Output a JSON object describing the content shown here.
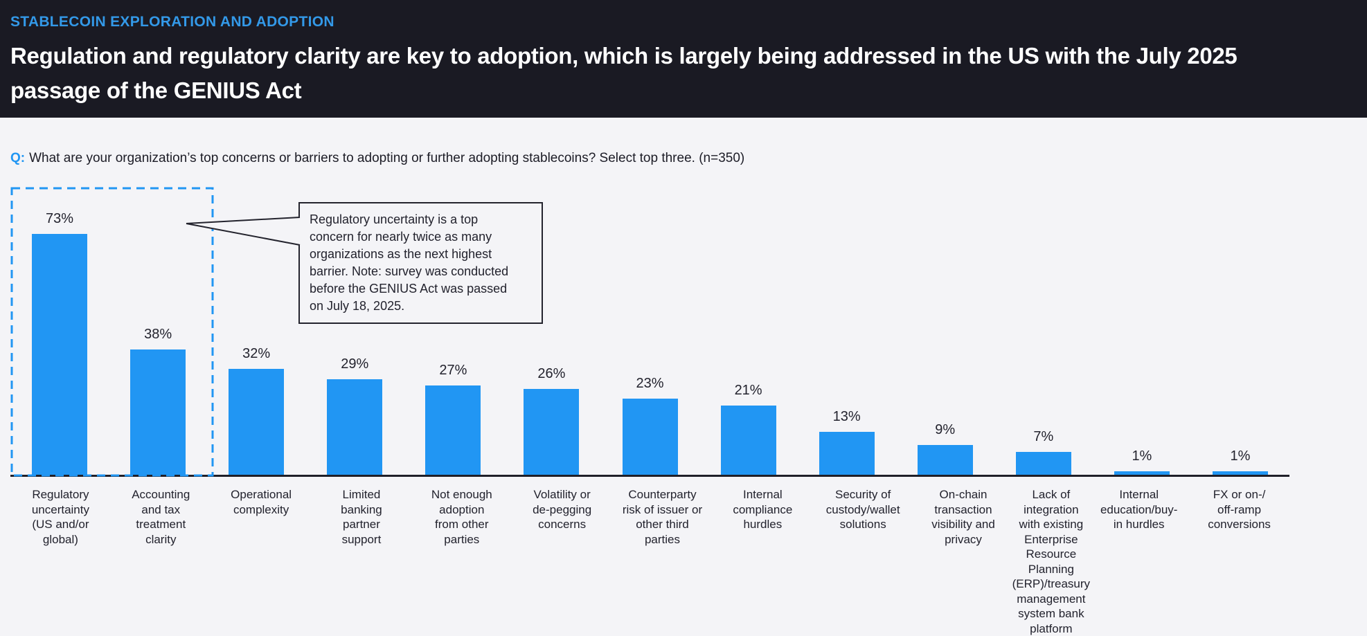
{
  "header": {
    "eyebrow": "STABLECOIN EXPLORATION AND ADOPTION",
    "title": "Regulation and regulatory clarity are key to adoption, which is largely being addressed in the US with the July 2025\npassage of the GENIUS Act"
  },
  "question": {
    "prefix": "Q:",
    "text": "What are your organization’s top concerns or barriers to adopting or further adopting stablecoins? Select top three. (n=350)"
  },
  "callout": {
    "text": "Regulatory uncertainty is a top\nconcern for nearly twice as many\norganizations as the next highest\nbarrier. Note: survey was conducted\nbefore the GENIUS Act was passed\non July 18, 2025."
  },
  "chart_data": {
    "type": "bar",
    "title": "",
    "xlabel": "",
    "ylabel": "",
    "unit": "%",
    "ylim": [
      0,
      80
    ],
    "grid": false,
    "legend": null,
    "categories": [
      "Regulatory uncertainty (US and/or global)",
      "Accounting and tax treatment clarity",
      "Operational complexity",
      "Limited banking partner support",
      "Not enough adoption from other parties",
      "Volatility or de-pegging concerns",
      "Counterparty risk of issuer or other third parties",
      "Internal compliance hurdles",
      "Security of custody/wallet solutions",
      "On-chain transaction visibility and privacy",
      "Lack of integration with existing Enterprise Resource Planning (ERP)/treasury management system bank platform",
      "Internal education/buy-in hurdles",
      "FX or on-/off-ramp conversions"
    ],
    "categories_multiline": [
      "Regulatory\nuncertainty\n(US and/or\nglobal)",
      "Accounting\nand tax\ntreatment\nclarity",
      "Operational\ncomplexity",
      "Limited\nbanking\npartner\nsupport",
      "Not enough\nadoption\nfrom other\nparties",
      "Volatility or\nde-pegging\nconcerns",
      "Counterparty\nrisk of issuer or\nother third\nparties",
      "Internal\ncompliance\nhurdles",
      "Security of\ncustody/wallet\nsolutions",
      "On-chain\ntransaction\nvisibility and\nprivacy",
      "Lack of integration\nwith existing\nEnterprise\nResource Planning\n(ERP)/treasury\nmanagement\nsystem bank\nplatform",
      "Internal\neducation/buy-\nin hurdles",
      "FX or on-/\noff-ramp\nconversions"
    ],
    "values": [
      73,
      38,
      32,
      29,
      27,
      26,
      23,
      21,
      13,
      9,
      7,
      1,
      1
    ],
    "value_labels": [
      "73%",
      "38%",
      "32%",
      "29%",
      "27%",
      "26%",
      "23%",
      "21%",
      "13%",
      "9%",
      "7%",
      "1%",
      "1%"
    ],
    "bar_color": "#2196f3",
    "highlight": {
      "style": "blue dashed rectangle around first two bars",
      "covers": [
        "Regulatory uncertainty (US and/or global)",
        "Accounting and tax treatment clarity"
      ],
      "color": "#2196f3"
    }
  },
  "colors": {
    "page_bg": "#f4f4f7",
    "header_bg": "#1a1a23",
    "eyebrow_blue": "#3399e8",
    "accent_blue": "#2196f3",
    "text_dark": "#22222d",
    "title_white": "#ffffff",
    "axis_dark": "#1f1f28"
  }
}
